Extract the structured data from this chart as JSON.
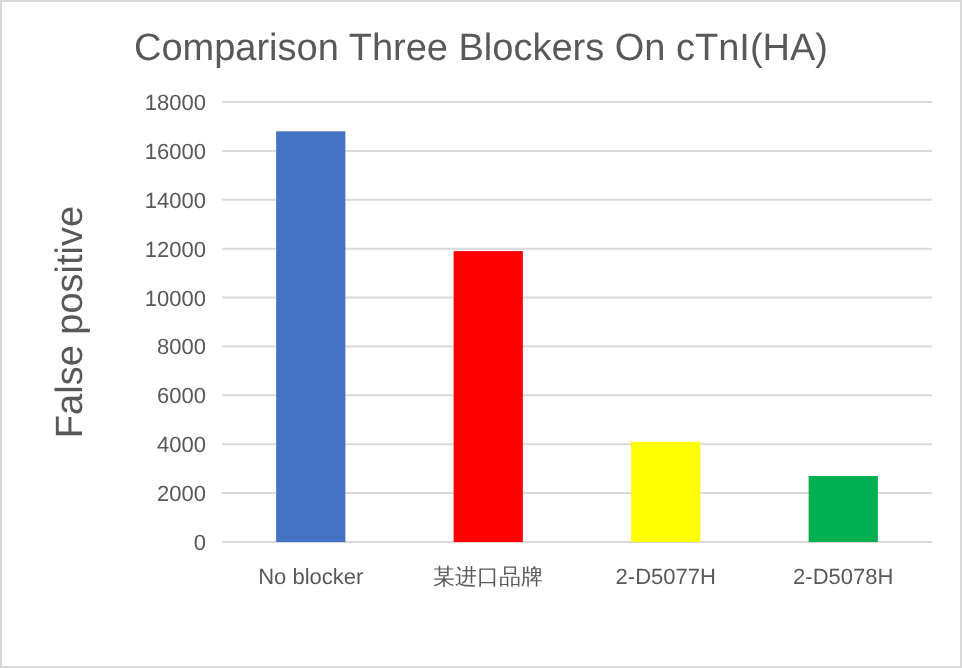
{
  "chart_data": {
    "type": "bar",
    "title": "Comparison Three Blockers On cTnI(HA)",
    "ylabel": "False positive",
    "categories": [
      "No blocker",
      "某进口品牌",
      "2-D5077H",
      "2-D5078H"
    ],
    "values": [
      16800,
      11900,
      4100,
      2700
    ],
    "colors": [
      "#4472c4",
      "#ff0000",
      "#ffff00",
      "#00b050"
    ],
    "ylim": [
      0,
      18000
    ],
    "yticks": [
      0,
      2000,
      4000,
      6000,
      8000,
      10000,
      12000,
      14000,
      16000,
      18000
    ],
    "grid": "y"
  }
}
